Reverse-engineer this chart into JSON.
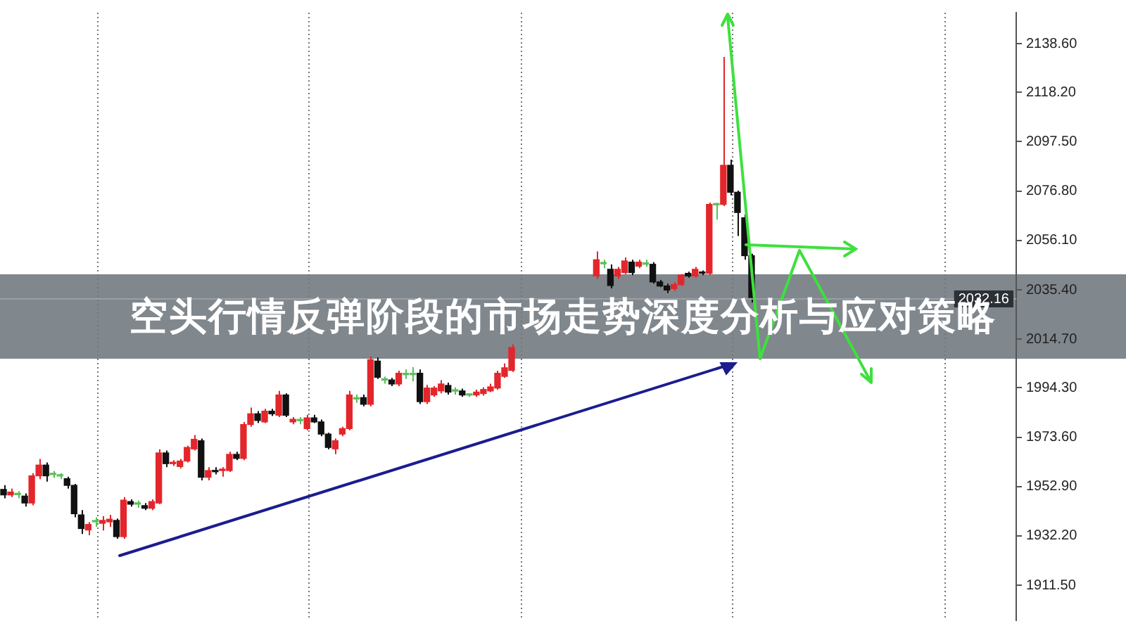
{
  "chart_data": {
    "type": "candlestick",
    "title": "空头行情反弹阶段的市场走势深度分析与应对策略",
    "categories": [
      null,
      null,
      null,
      null,
      null,
      null,
      null,
      null,
      null,
      null,
      null,
      null,
      null,
      null,
      null,
      null,
      null,
      null,
      null,
      null,
      null,
      null,
      null,
      null,
      null,
      null,
      null,
      null,
      null,
      null,
      null,
      null,
      null,
      null,
      null,
      null,
      null,
      null,
      null,
      null,
      null,
      null,
      null,
      null,
      null,
      null,
      null,
      null,
      null,
      null,
      null,
      null,
      null,
      null,
      null,
      null,
      null,
      null,
      null,
      null,
      null,
      null,
      null,
      null,
      null,
      null,
      null,
      null,
      null,
      null,
      null,
      null,
      null,
      null,
      null,
      null,
      null,
      null,
      null,
      null,
      null,
      null,
      null,
      null,
      null,
      null,
      null,
      null,
      null,
      null,
      null,
      null,
      null,
      null,
      null,
      null,
      null,
      null,
      null,
      null,
      null,
      null,
      null,
      null,
      null,
      null,
      null,
      null,
      null,
      null,
      null,
      null,
      null,
      null,
      null,
      null,
      null,
      null,
      null,
      null,
      null,
      null,
      null,
      null,
      null,
      null,
      null,
      null,
      null,
      null,
      null,
      null,
      null,
      null,
      null,
      null,
      null,
      null,
      null,
      null,
      null,
      null,
      null,
      null
    ],
    "ohlc": [
      [
        1951.7,
        1953.5,
        1948.0,
        1949.4
      ],
      [
        1949.4,
        1952.0,
        1948.5,
        1950.6
      ],
      [
        1949.5,
        1951.0,
        1948.0,
        1949.6
      ],
      [
        1948.9,
        1950.0,
        1944.5,
        1946.0
      ],
      [
        1946.0,
        1958.5,
        1945.0,
        1957.4
      ],
      [
        1957.4,
        1964.5,
        1956.0,
        1961.9
      ],
      [
        1961.9,
        1963.0,
        1955.0,
        1957.4
      ],
      [
        1957.9,
        1959.5,
        1956.5,
        1958.0
      ],
      [
        1957.4,
        1958.5,
        1956.0,
        1957.3
      ],
      [
        1956.2,
        1957.0,
        1952.0,
        1953.4
      ],
      [
        1953.4,
        1954.0,
        1940.0,
        1941.5
      ],
      [
        1941.0,
        1943.0,
        1933.0,
        1935.3
      ],
      [
        1934.7,
        1938.0,
        1932.5,
        1937.0
      ],
      [
        1938.1,
        1940.0,
        1936.0,
        1938.2
      ],
      [
        1937.5,
        1940.5,
        1934.5,
        1938.7
      ],
      [
        1938.1,
        1941.0,
        1936.0,
        1939.2
      ],
      [
        1938.7,
        1939.5,
        1931.0,
        1931.9
      ],
      [
        1931.9,
        1948.5,
        1931.0,
        1947.2
      ],
      [
        1946.6,
        1947.5,
        1944.5,
        1945.5
      ],
      [
        1945.5,
        1947.0,
        1944.0,
        1945.6
      ],
      [
        1944.9,
        1946.0,
        1943.0,
        1943.8
      ],
      [
        1943.8,
        1947.5,
        1943.0,
        1946.6
      ],
      [
        1946.0,
        1968.5,
        1945.5,
        1967.0
      ],
      [
        1967.0,
        1968.0,
        1961.0,
        1962.5
      ],
      [
        1962.5,
        1964.0,
        1961.5,
        1963.0
      ],
      [
        1961.3,
        1964.5,
        1960.5,
        1963.6
      ],
      [
        1963.6,
        1970.0,
        1963.0,
        1969.3
      ],
      [
        1968.7,
        1974.5,
        1968.0,
        1972.7
      ],
      [
        1972.1,
        1973.0,
        1955.5,
        1956.8
      ],
      [
        1956.8,
        1961.0,
        1955.5,
        1959.6
      ],
      [
        1959.6,
        1961.0,
        1958.0,
        1959.1
      ],
      [
        1959.6,
        1961.0,
        1957.0,
        1960.2
      ],
      [
        1959.6,
        1967.5,
        1959.0,
        1966.4
      ],
      [
        1966.4,
        1967.5,
        1964.0,
        1964.7
      ],
      [
        1964.7,
        1980.0,
        1964.0,
        1978.9
      ],
      [
        1978.9,
        1986.0,
        1978.0,
        1983.4
      ],
      [
        1983.4,
        1984.5,
        1979.5,
        1980.6
      ],
      [
        1980.0,
        1985.5,
        1979.5,
        1984.5
      ],
      [
        1984.5,
        1985.5,
        1982.5,
        1983.4
      ],
      [
        1982.8,
        1993.0,
        1982.0,
        1991.3
      ],
      [
        1991.3,
        1992.0,
        1982.0,
        1982.8
      ],
      [
        1980.0,
        1982.0,
        1979.0,
        1981.1
      ],
      [
        1980.6,
        1982.0,
        1979.0,
        1980.5
      ],
      [
        1977.2,
        1983.0,
        1976.5,
        1981.7
      ],
      [
        1981.7,
        1983.0,
        1979.5,
        1980.0
      ],
      [
        1980.0,
        1981.0,
        1974.0,
        1974.9
      ],
      [
        1974.9,
        1975.5,
        1968.5,
        1969.3
      ],
      [
        1968.7,
        1973.0,
        1966.5,
        1972.1
      ],
      [
        1974.9,
        1978.0,
        1974.0,
        1977.2
      ],
      [
        1977.2,
        1993.0,
        1976.5,
        1991.3
      ],
      [
        1989.6,
        1991.5,
        1988.0,
        1989.7
      ],
      [
        1990.2,
        1991.5,
        1986.5,
        1987.4
      ],
      [
        1987.4,
        2007.5,
        1986.5,
        2006.1
      ],
      [
        2005.5,
        2007.0,
        1998.0,
        1998.7
      ],
      [
        1997.6,
        1999.0,
        1996.0,
        1997.5
      ],
      [
        1997.6,
        1998.5,
        1995.0,
        1995.9
      ],
      [
        1995.9,
        2001.5,
        1995.0,
        2000.4
      ],
      [
        1999.8,
        2002.0,
        1998.0,
        1999.9
      ],
      [
        1999.9,
        2003.0,
        1997.0,
        1999.8
      ],
      [
        2000.4,
        2002.0,
        1987.5,
        1988.5
      ],
      [
        1988.5,
        1995.5,
        1987.5,
        1994.2
      ],
      [
        1991.3,
        1995.0,
        1990.5,
        1994.2
      ],
      [
        1993.0,
        1997.5,
        1992.0,
        1995.9
      ],
      [
        1995.3,
        1996.5,
        1991.5,
        1992.5
      ],
      [
        1993.0,
        1994.5,
        1991.5,
        1992.9
      ],
      [
        1993.0,
        1994.0,
        1990.5,
        1991.3
      ],
      [
        1991.3,
        1992.0,
        1990.5,
        1991.2
      ],
      [
        1991.3,
        1993.5,
        1990.5,
        1992.5
      ],
      [
        1991.9,
        1994.5,
        1991.0,
        1993.6
      ],
      [
        1993.0,
        1996.0,
        1992.5,
        1994.7
      ],
      [
        1994.2,
        2001.5,
        1993.5,
        2000.4
      ],
      [
        1999.1,
        2004.5,
        1998.5,
        2002.7
      ],
      [
        2001.6,
        2012.5,
        2001.0,
        2011.2
      ],
      null,
      null,
      null,
      null,
      null,
      null,
      null,
      null,
      null,
      null,
      null,
      [
        2041.2,
        2051.5,
        2040.0,
        2048.0
      ],
      [
        2046.3,
        2048.0,
        2044.5,
        2046.4
      ],
      [
        2044.0,
        2046.0,
        2036.0,
        2037.2
      ],
      [
        2041.2,
        2045.0,
        2040.0,
        2044.0
      ],
      [
        2042.6,
        2049.0,
        2042.0,
        2047.5
      ],
      [
        2047.0,
        2048.0,
        2041.5,
        2042.6
      ],
      [
        2045.3,
        2048.0,
        2044.5,
        2047.0
      ],
      [
        2046.1,
        2048.0,
        2045.0,
        2046.2
      ],
      [
        2046.1,
        2047.0,
        2038.0,
        2038.7
      ],
      [
        2038.7,
        2039.5,
        2036.5,
        2037.0
      ],
      [
        2037.0,
        2038.0,
        2034.0,
        2035.3
      ],
      [
        2035.9,
        2038.5,
        2035.0,
        2037.6
      ],
      [
        2037.6,
        2042.0,
        2037.0,
        2041.6
      ],
      [
        2042.3,
        2043.0,
        2040.5,
        2041.2
      ],
      [
        2041.2,
        2045.0,
        2040.5,
        2044.0
      ],
      [
        2042.4,
        2043.5,
        2041.5,
        2042.3
      ],
      [
        2042.3,
        2072.0,
        2041.5,
        2071.2
      ],
      [
        2071.0,
        2071.8,
        2064.8,
        2071.1
      ],
      [
        2071.2,
        2133.0,
        2070.5,
        2087.6
      ],
      [
        2087.6,
        2090.0,
        2075.0,
        2076.3
      ],
      [
        2076.3,
        2077.0,
        2058.0,
        2067.8
      ],
      [
        2065.6,
        2067.0,
        2048.0,
        2049.7
      ],
      [
        2049.7,
        2050.5,
        2030.0,
        2032.16
      ],
      null,
      null,
      null,
      null,
      null,
      null,
      null,
      null,
      null,
      null,
      null,
      null,
      null,
      null,
      null,
      null,
      null,
      null,
      null,
      null,
      null,
      null,
      null,
      null,
      null,
      null,
      null,
      null,
      null,
      null,
      null,
      null,
      null,
      null,
      null,
      null,
      null
    ],
    "colors": [
      "#111111",
      "#e3262b",
      "#5cbf5c",
      "#111111",
      "#e3262b",
      "#e3262b",
      "#111111",
      "#5cbf5c",
      "#5cbf5c",
      "#111111",
      "#111111",
      "#111111",
      "#e3262b",
      "#5cbf5c",
      "#e3262b",
      "#e3262b",
      "#111111",
      "#e3262b",
      "#111111",
      "#5cbf5c",
      "#111111",
      "#e3262b",
      "#e3262b",
      "#111111",
      "#e3262b",
      "#e3262b",
      "#e3262b",
      "#e3262b",
      "#111111",
      "#e3262b",
      "#111111",
      "#e3262b",
      "#e3262b",
      "#111111",
      "#e3262b",
      "#e3262b",
      "#111111",
      "#e3262b",
      "#111111",
      "#e3262b",
      "#111111",
      "#e3262b",
      "#5cbf5c",
      "#e3262b",
      "#111111",
      "#111111",
      "#111111",
      "#e3262b",
      "#e3262b",
      "#e3262b",
      "#5cbf5c",
      "#111111",
      "#e3262b",
      "#111111",
      "#5cbf5c",
      "#111111",
      "#e3262b",
      "#5cbf5c",
      "#5cbf5c",
      "#111111",
      "#e3262b",
      "#e3262b",
      "#e3262b",
      "#111111",
      "#5cbf5c",
      "#111111",
      "#5cbf5c",
      "#e3262b",
      "#e3262b",
      "#e3262b",
      "#e3262b",
      "#e3262b",
      "#e3262b",
      "#e3262b",
      "#111111",
      "#e3262b",
      "#5cbf5c",
      "#e3262b",
      "#111111",
      "#e3262b",
      "#e3262b",
      "#e3262b",
      "#e3262b",
      "#5cbf5c",
      "#e3262b",
      "#5cbf5c",
      "#111111",
      "#e3262b",
      "#e3262b",
      "#111111",
      "#e3262b",
      "#5cbf5c",
      "#111111",
      "#111111",
      "#111111",
      "#e3262b",
      "#e3262b",
      "#111111",
      "#e3262b",
      "#111111",
      "#e3262b",
      "#5cbf5c",
      "#e3262b",
      "#111111",
      "#111111",
      "#111111",
      "#111111",
      null,
      null,
      null,
      null,
      null,
      null,
      null,
      null,
      null,
      null,
      null,
      null,
      null,
      null,
      null,
      null,
      null,
      null,
      null,
      null,
      null,
      null,
      null,
      null,
      null,
      null,
      null,
      null,
      null,
      null,
      null,
      null,
      null,
      null,
      null,
      null,
      null
    ],
    "ylim": [
      1896.8,
      2151.6
    ],
    "yticks": [
      {
        "value": 2138.6,
        "label": "2138.60"
      },
      {
        "value": 2118.2,
        "label": "2118.20"
      },
      {
        "value": 2097.5,
        "label": "2097.50"
      },
      {
        "value": 2076.8,
        "label": "2076.80"
      },
      {
        "value": 2056.1,
        "label": "2056.10"
      },
      {
        "value": 2035.4,
        "label": "2035.40"
      },
      {
        "value": 2014.7,
        "label": "2014.70"
      },
      {
        "value": 1994.3,
        "label": "1994.30"
      },
      {
        "value": 1973.6,
        "label": "1973.60"
      },
      {
        "value": 1952.9,
        "label": "1952.90"
      },
      {
        "value": 1932.2,
        "label": "1932.20"
      },
      {
        "value": 1911.5,
        "label": "1911.50"
      }
    ],
    "ref_lines": [
      {
        "axis": "y",
        "value": 2032.16,
        "label": "2032.16"
      }
    ]
  }
}
